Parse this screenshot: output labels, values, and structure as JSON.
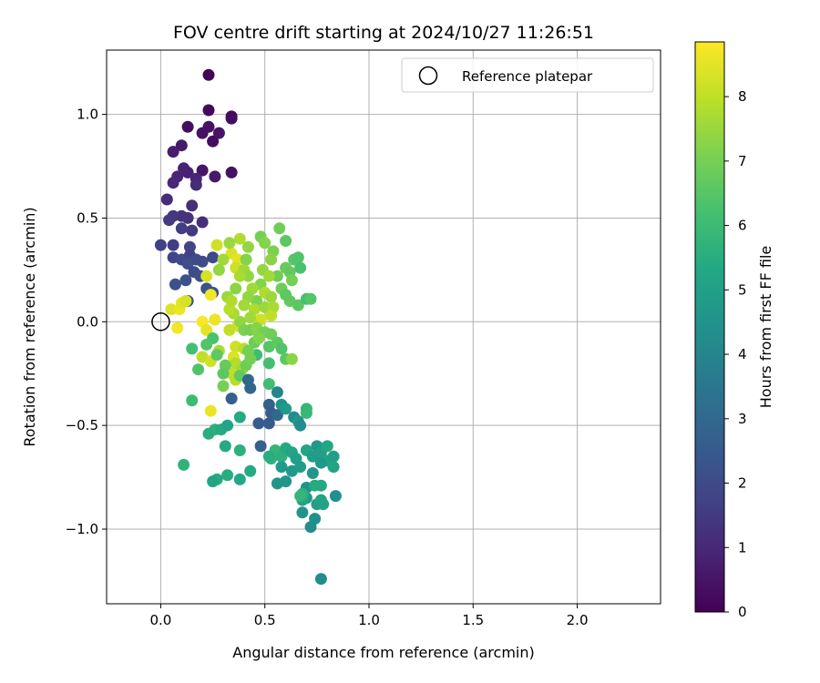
{
  "chart_data": {
    "type": "scatter",
    "title": "FOV centre drift starting at 2024/10/27 11:26:51",
    "xlabel": "Angular distance from reference (arcmin)",
    "ylabel": "Rotation from reference (arcmin)",
    "xlim": [
      -0.26,
      2.4
    ],
    "ylim": [
      -1.36,
      1.31
    ],
    "x_ticks": [
      0.0,
      0.5,
      1.0,
      1.5,
      2.0
    ],
    "x_tick_labels": [
      "0.0",
      "0.5",
      "1.0",
      "1.5",
      "2.0"
    ],
    "y_ticks": [
      -1.0,
      -0.5,
      0.0,
      0.5,
      1.0
    ],
    "y_tick_labels": [
      "−1.0",
      "−0.5",
      "0.0",
      "0.5",
      "1.0"
    ],
    "grid": true,
    "legend": {
      "position": "top-right",
      "entries": [
        "Reference platepar"
      ]
    },
    "reference_point": {
      "x": 0.0,
      "y": 0.0,
      "label": "Reference platepar"
    },
    "colorbar": {
      "label": "Hours from first FF file",
      "colormap": "viridis",
      "range": [
        0,
        8.85
      ],
      "ticks": [
        0,
        1,
        2,
        3,
        4,
        5,
        6,
        7,
        8
      ],
      "tick_labels": [
        "0",
        "1",
        "2",
        "3",
        "4",
        "5",
        "6",
        "7",
        "8"
      ]
    },
    "points": [
      [
        0.23,
        1.19,
        0.1
      ],
      [
        0.23,
        1.02,
        0.2
      ],
      [
        0.34,
        0.99,
        0.2
      ],
      [
        0.34,
        0.98,
        0.3
      ],
      [
        0.13,
        0.94,
        0.3
      ],
      [
        0.23,
        0.94,
        0.4
      ],
      [
        0.2,
        0.91,
        0.4
      ],
      [
        0.28,
        0.91,
        0.5
      ],
      [
        0.25,
        0.87,
        0.3
      ],
      [
        0.1,
        0.85,
        0.6
      ],
      [
        0.06,
        0.82,
        0.7
      ],
      [
        0.11,
        0.74,
        0.8
      ],
      [
        0.2,
        0.73,
        0.5
      ],
      [
        0.34,
        0.72,
        0.4
      ],
      [
        0.13,
        0.72,
        0.8
      ],
      [
        0.26,
        0.7,
        0.6
      ],
      [
        0.08,
        0.7,
        0.9
      ],
      [
        0.17,
        0.69,
        0.9
      ],
      [
        0.06,
        0.67,
        1.0
      ],
      [
        0.17,
        0.66,
        1.1
      ],
      [
        0.03,
        0.59,
        1.1
      ],
      [
        0.15,
        0.56,
        1.2
      ],
      [
        0.1,
        0.51,
        1.3
      ],
      [
        0.06,
        0.51,
        1.4
      ],
      [
        0.13,
        0.5,
        1.3
      ],
      [
        0.04,
        0.49,
        1.5
      ],
      [
        0.2,
        0.48,
        1.2
      ],
      [
        0.1,
        0.45,
        1.6
      ],
      [
        0.15,
        0.44,
        1.5
      ],
      [
        0.0,
        0.37,
        1.7
      ],
      [
        0.06,
        0.37,
        1.6
      ],
      [
        0.14,
        0.36,
        1.8
      ],
      [
        0.14,
        0.32,
        1.7
      ],
      [
        0.06,
        0.31,
        1.8
      ],
      [
        0.25,
        0.31,
        1.9
      ],
      [
        0.17,
        0.3,
        2.0
      ],
      [
        0.1,
        0.3,
        1.9
      ],
      [
        0.2,
        0.29,
        2.0
      ],
      [
        0.13,
        0.28,
        2.1
      ],
      [
        0.16,
        0.24,
        2.0
      ],
      [
        0.19,
        0.22,
        2.1
      ],
      [
        0.12,
        0.2,
        2.2
      ],
      [
        0.07,
        0.18,
        2.2
      ],
      [
        0.22,
        0.16,
        2.3
      ],
      [
        0.25,
        0.14,
        2.3
      ],
      [
        0.13,
        0.1,
        2.1
      ],
      [
        0.05,
        0.06,
        8.4
      ],
      [
        0.09,
        0.06,
        8.6
      ],
      [
        0.1,
        0.09,
        8.5
      ],
      [
        0.12,
        0.1,
        8.3
      ],
      [
        0.24,
        0.13,
        8.7
      ],
      [
        0.2,
        0.0,
        8.8
      ],
      [
        0.26,
        0.01,
        8.6
      ],
      [
        0.08,
        -0.03,
        8.7
      ],
      [
        0.22,
        -0.04,
        8.5
      ],
      [
        0.37,
        -0.02,
        8.3
      ],
      [
        0.33,
        -0.04,
        8.0
      ],
      [
        0.36,
        -0.12,
        8.2
      ],
      [
        0.28,
        -0.14,
        7.7
      ],
      [
        0.4,
        -0.13,
        7.9
      ],
      [
        0.35,
        -0.17,
        8.4
      ],
      [
        0.2,
        -0.17,
        8.0
      ],
      [
        0.24,
        -0.19,
        8.2
      ],
      [
        0.36,
        -0.2,
        7.8
      ],
      [
        0.39,
        -0.23,
        7.6
      ],
      [
        0.34,
        -0.25,
        8.0
      ],
      [
        0.36,
        -0.28,
        7.9
      ],
      [
        0.24,
        -0.43,
        8.6
      ],
      [
        0.27,
        0.37,
        8.2
      ],
      [
        0.34,
        0.33,
        8.4
      ],
      [
        0.37,
        0.3,
        8.5
      ],
      [
        0.36,
        0.26,
        8.2
      ],
      [
        0.22,
        0.22,
        8.3
      ],
      [
        0.38,
        0.4,
        7.8
      ],
      [
        0.33,
        0.38,
        7.5
      ],
      [
        0.42,
        0.36,
        7.4
      ],
      [
        0.41,
        0.3,
        7.2
      ],
      [
        0.4,
        0.25,
        7.6
      ],
      [
        0.42,
        0.22,
        7.4
      ],
      [
        0.48,
        0.41,
        7.0
      ],
      [
        0.5,
        0.38,
        7.2
      ],
      [
        0.57,
        0.45,
        6.9
      ],
      [
        0.54,
        0.34,
        7.1
      ],
      [
        0.53,
        0.3,
        7.3
      ],
      [
        0.6,
        0.39,
        6.6
      ],
      [
        0.6,
        0.26,
        6.8
      ],
      [
        0.64,
        0.3,
        6.5
      ],
      [
        0.66,
        0.31,
        6.4
      ],
      [
        0.62,
        0.24,
        6.7
      ],
      [
        0.67,
        0.26,
        6.3
      ],
      [
        0.56,
        0.22,
        6.9
      ],
      [
        0.63,
        0.2,
        7.0
      ],
      [
        0.49,
        0.25,
        7.4
      ],
      [
        0.52,
        0.22,
        7.6
      ],
      [
        0.48,
        0.18,
        7.2
      ],
      [
        0.44,
        0.16,
        7.6
      ],
      [
        0.5,
        0.14,
        7.8
      ],
      [
        0.53,
        0.12,
        7.5
      ],
      [
        0.58,
        0.16,
        6.9
      ],
      [
        0.6,
        0.13,
        6.6
      ],
      [
        0.62,
        0.1,
        6.7
      ],
      [
        0.66,
        0.08,
        6.6
      ],
      [
        0.7,
        0.11,
        6.2
      ],
      [
        0.72,
        0.11,
        6.5
      ],
      [
        0.46,
        0.1,
        7.1
      ],
      [
        0.42,
        0.12,
        7.4
      ],
      [
        0.4,
        0.08,
        7.6
      ],
      [
        0.45,
        0.06,
        7.8
      ],
      [
        0.5,
        0.07,
        7.5
      ],
      [
        0.54,
        0.07,
        7.7
      ],
      [
        0.53,
        0.03,
        8.0
      ],
      [
        0.48,
        0.01,
        8.2
      ],
      [
        0.43,
        0.02,
        7.6
      ],
      [
        0.38,
        0.0,
        7.4
      ],
      [
        0.35,
        0.04,
        7.7
      ],
      [
        0.33,
        0.06,
        7.9
      ],
      [
        0.32,
        0.12,
        7.5
      ],
      [
        0.36,
        0.16,
        7.3
      ],
      [
        0.38,
        0.22,
        7.7
      ],
      [
        0.3,
        0.3,
        7.6
      ],
      [
        0.28,
        0.25,
        7.4
      ],
      [
        0.34,
        0.1,
        7.8
      ],
      [
        0.4,
        -0.04,
        7.1
      ],
      [
        0.43,
        -0.04,
        7.0
      ],
      [
        0.46,
        -0.03,
        7.2
      ],
      [
        0.5,
        -0.05,
        7.0
      ],
      [
        0.53,
        -0.06,
        6.9
      ],
      [
        0.45,
        -0.1,
        6.8
      ],
      [
        0.52,
        -0.12,
        6.5
      ],
      [
        0.56,
        -0.1,
        6.6
      ],
      [
        0.58,
        -0.13,
        6.4
      ],
      [
        0.6,
        -0.18,
        6.6
      ],
      [
        0.63,
        -0.18,
        7.3
      ],
      [
        0.52,
        -0.2,
        6.2
      ],
      [
        0.46,
        -0.16,
        6.1
      ],
      [
        0.42,
        -0.14,
        7.0
      ],
      [
        0.47,
        -0.08,
        7.2
      ],
      [
        0.41,
        -0.21,
        6.9
      ],
      [
        0.43,
        -0.18,
        7.0
      ],
      [
        0.38,
        -0.26,
        6.7
      ],
      [
        0.31,
        -0.21,
        6.8
      ],
      [
        0.3,
        -0.25,
        6.6
      ],
      [
        0.25,
        -0.08,
        6.3
      ],
      [
        0.22,
        -0.11,
        6.4
      ],
      [
        0.27,
        -0.16,
        6.6
      ],
      [
        0.18,
        -0.23,
        6.4
      ],
      [
        0.15,
        -0.13,
        6.2
      ],
      [
        0.42,
        -0.28,
        3.0
      ],
      [
        0.43,
        -0.32,
        2.9
      ],
      [
        0.52,
        -0.3,
        6.1
      ],
      [
        0.15,
        -0.38,
        6.0
      ],
      [
        0.3,
        -0.31,
        7.0
      ],
      [
        0.34,
        -0.37,
        2.7
      ],
      [
        0.52,
        -0.4,
        2.8
      ],
      [
        0.53,
        -0.44,
        2.6
      ],
      [
        0.56,
        -0.45,
        3.0
      ],
      [
        0.58,
        -0.4,
        4.5
      ],
      [
        0.56,
        -0.34,
        4.0
      ],
      [
        0.6,
        -0.42,
        4.8
      ],
      [
        0.64,
        -0.46,
        4.2
      ],
      [
        0.66,
        -0.48,
        4.6
      ],
      [
        0.7,
        -0.42,
        5.8
      ],
      [
        0.7,
        -0.44,
        5.9
      ],
      [
        0.67,
        -0.5,
        4.3
      ],
      [
        0.52,
        -0.49,
        2.5
      ],
      [
        0.47,
        -0.49,
        2.6
      ],
      [
        0.38,
        -0.46,
        5.4
      ],
      [
        0.26,
        -0.52,
        5.6
      ],
      [
        0.29,
        -0.52,
        5.4
      ],
      [
        0.23,
        -0.54,
        5.5
      ],
      [
        0.32,
        -0.5,
        5.2
      ],
      [
        0.53,
        -0.66,
        5.7
      ],
      [
        0.55,
        -0.62,
        5.8
      ],
      [
        0.58,
        -0.65,
        5.6
      ],
      [
        0.6,
        -0.61,
        5.4
      ],
      [
        0.63,
        -0.63,
        5.2
      ],
      [
        0.65,
        -0.66,
        5.0
      ],
      [
        0.58,
        -0.7,
        4.8
      ],
      [
        0.56,
        -0.78,
        4.5
      ],
      [
        0.6,
        -0.77,
        4.6
      ],
      [
        0.63,
        -0.72,
        4.7
      ],
      [
        0.67,
        -0.7,
        4.9
      ],
      [
        0.7,
        -0.62,
        5.2
      ],
      [
        0.73,
        -0.65,
        4.9
      ],
      [
        0.75,
        -0.6,
        4.7
      ],
      [
        0.77,
        -0.63,
        5.0
      ],
      [
        0.8,
        -0.6,
        5.3
      ],
      [
        0.8,
        -0.67,
        5.1
      ],
      [
        0.83,
        -0.65,
        5.0
      ],
      [
        0.83,
        -0.7,
        5.2
      ],
      [
        0.77,
        -0.68,
        4.7
      ],
      [
        0.73,
        -0.73,
        4.6
      ],
      [
        0.7,
        -0.8,
        4.5
      ],
      [
        0.7,
        -0.85,
        4.8
      ],
      [
        0.75,
        -0.88,
        4.9
      ],
      [
        0.77,
        -0.86,
        5.1
      ],
      [
        0.77,
        -0.79,
        5.3
      ],
      [
        0.74,
        -0.95,
        4.4
      ],
      [
        0.72,
        -0.99,
        4.3
      ],
      [
        0.68,
        -0.92,
        4.5
      ],
      [
        0.68,
        -0.86,
        5.1
      ],
      [
        0.68,
        -0.83,
        5.6
      ],
      [
        0.67,
        -0.84,
        5.8
      ],
      [
        0.74,
        -0.79,
        5.4
      ],
      [
        0.78,
        -0.88,
        5.1
      ],
      [
        0.84,
        -0.84,
        4.4
      ],
      [
        0.52,
        -0.65,
        5.5
      ],
      [
        0.48,
        -0.6,
        2.7
      ],
      [
        0.31,
        -0.6,
        5.4
      ],
      [
        0.38,
        -0.62,
        5.6
      ],
      [
        0.27,
        -0.76,
        5.4
      ],
      [
        0.25,
        -0.77,
        5.2
      ],
      [
        0.32,
        -0.74,
        5.5
      ],
      [
        0.38,
        -0.76,
        5.3
      ],
      [
        0.43,
        -0.72,
        5.4
      ],
      [
        0.11,
        -0.69,
        5.7
      ],
      [
        0.77,
        -1.24,
        4.3
      ]
    ]
  }
}
